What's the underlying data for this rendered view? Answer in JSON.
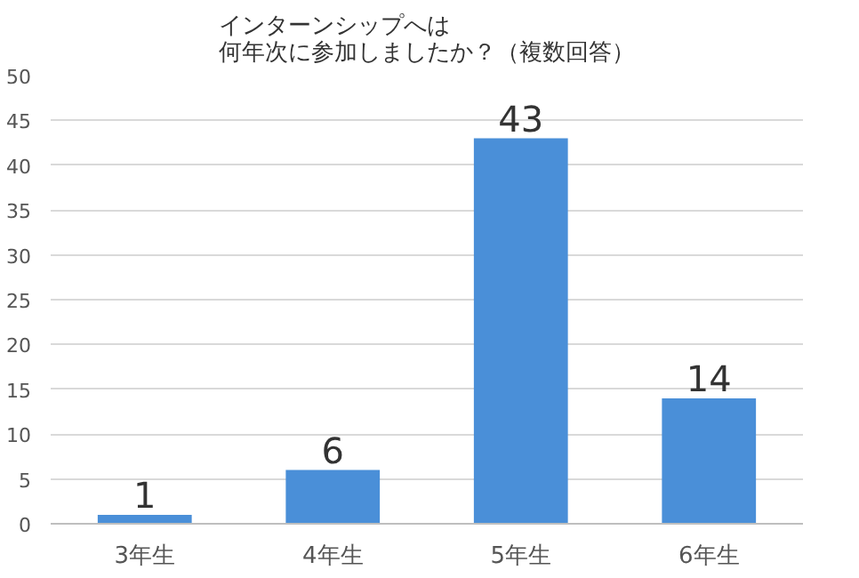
{
  "chart_data": {
    "type": "bar",
    "title": "インターンシップへは何年次に参加しましたか？（複数回答）",
    "categories": [
      "3年生",
      "4年生",
      "5年生",
      "6年生"
    ],
    "values": [
      1,
      6,
      43,
      14
    ],
    "color": "#4a8fd8",
    "ylim": [
      0,
      50
    ],
    "yticks": [
      0,
      5,
      10,
      15,
      20,
      25,
      30,
      35,
      40,
      45,
      50
    ],
    "grid": "y",
    "data_labels": true
  }
}
